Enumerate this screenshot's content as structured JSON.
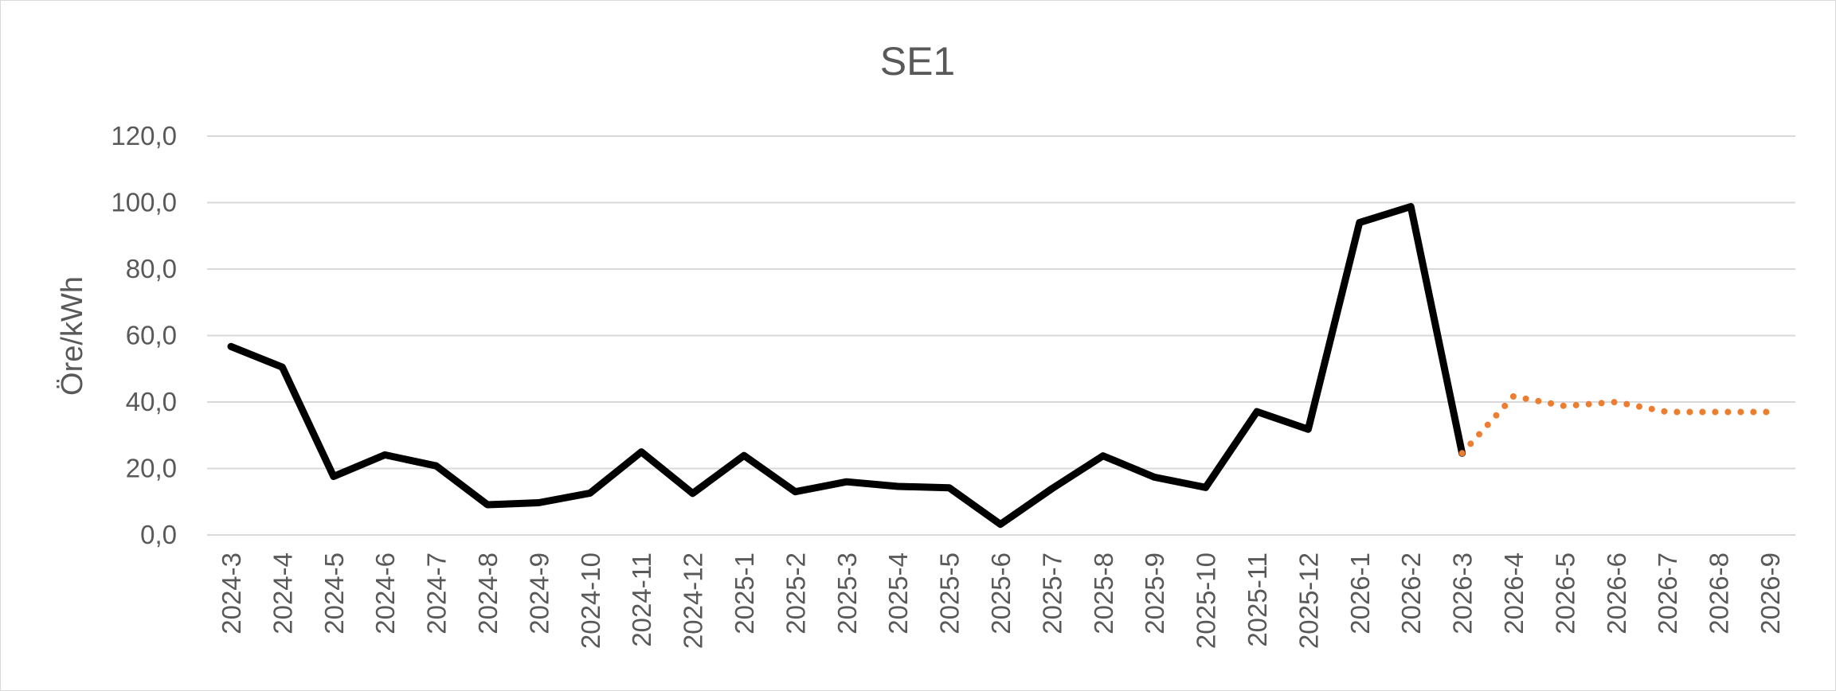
{
  "chart_data": {
    "type": "line",
    "title": "SE1",
    "xlabel": "",
    "ylabel": "Öre/kWh",
    "ylim": [
      0,
      120
    ],
    "yticks": [
      "0,0",
      "20,0",
      "40,0",
      "60,0",
      "80,0",
      "100,0",
      "120,0"
    ],
    "grid": true,
    "legend": "none",
    "categories": [
      "2024-3",
      "2024-4",
      "2024-5",
      "2024-6",
      "2024-7",
      "2024-8",
      "2024-9",
      "2024-10",
      "2024-11",
      "2024-12",
      "2025-1",
      "2025-2",
      "2025-3",
      "2025-4",
      "2025-5",
      "2025-6",
      "2025-7",
      "2025-8",
      "2025-9",
      "2025-10",
      "2025-11",
      "2025-12",
      "2026-1",
      "2026-2",
      "2026-3",
      "2026-4",
      "2026-5",
      "2026-6",
      "2026-7",
      "2026-8",
      "2026-9"
    ],
    "series": [
      {
        "color": "#000000",
        "style": "solid",
        "values": [
          56.7,
          50.5,
          17.6,
          24.1,
          20.8,
          9.1,
          9.7,
          12.6,
          25.0,
          12.5,
          23.9,
          13.0,
          16.0,
          14.6,
          14.2,
          3.2,
          13.9,
          23.8,
          17.4,
          14.3,
          37.1,
          31.8,
          94.0,
          98.8,
          24.6,
          null,
          null,
          null,
          null,
          null,
          null
        ]
      },
      {
        "color": "#ed7d31",
        "style": "dotted",
        "values": [
          null,
          null,
          null,
          null,
          null,
          null,
          null,
          null,
          null,
          null,
          null,
          null,
          null,
          null,
          null,
          null,
          null,
          null,
          null,
          null,
          null,
          null,
          null,
          null,
          24.6,
          41.7,
          38.8,
          40.0,
          37.0,
          37.0,
          37.0
        ]
      }
    ]
  }
}
